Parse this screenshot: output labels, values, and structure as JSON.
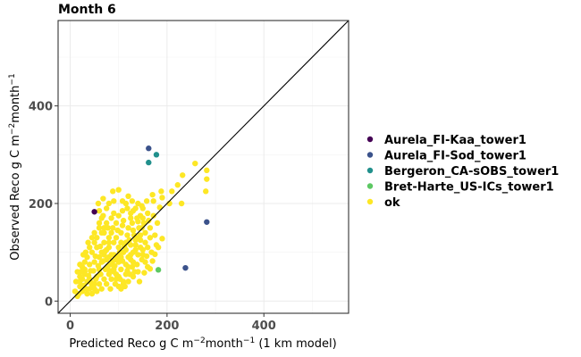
{
  "chart_data": {
    "type": "scatter",
    "title": "Month 6",
    "xlabel": {
      "pre": "Predicted Reco g C m",
      "sup1": "−2",
      "mid": "month",
      "sup2": "−1",
      "post": " (1 km model)"
    },
    "ylabel": {
      "pre": "Observed Reco g C m",
      "sup1": "−2",
      "mid": "month",
      "sup2": "−1",
      "post": ""
    },
    "xlim": [
      -25,
      575
    ],
    "ylim": [
      -25,
      575
    ],
    "x_ticks": [
      0,
      200,
      400
    ],
    "y_ticks": [
      0,
      200,
      400
    ],
    "grid": true,
    "identity_line": true,
    "legend_position": "right",
    "series": [
      {
        "name": "Aurela_FI-Kaa_tower1",
        "color": "#440154",
        "points": [
          [
            50,
            183
          ]
        ]
      },
      {
        "name": "Aurela_FI-Sod_tower1",
        "color": "#3B528B",
        "points": [
          [
            162,
            313
          ],
          [
            282,
            162
          ],
          [
            238,
            68
          ]
        ]
      },
      {
        "name": "Bergeron_CA-sOBS_tower1",
        "color": "#21908C",
        "points": [
          [
            162,
            284
          ],
          [
            178,
            300
          ]
        ]
      },
      {
        "name": "Bret-Harte_US-ICs_tower1",
        "color": "#5DC863",
        "points": [
          [
            182,
            64
          ]
        ]
      },
      {
        "name": "ok",
        "color": "#FDE725",
        "points": [
          [
            258,
            282
          ],
          [
            282,
            268
          ],
          [
            232,
            258
          ],
          [
            282,
            250
          ],
          [
            222,
            238
          ],
          [
            210,
            225
          ],
          [
            188,
            225
          ],
          [
            280,
            225
          ],
          [
            190,
            212
          ],
          [
            205,
            200
          ],
          [
            230,
            200
          ],
          [
            170,
            218
          ],
          [
            172,
            205
          ],
          [
            185,
            192
          ],
          [
            180,
            160
          ],
          [
            165,
            150
          ],
          [
            175,
            135
          ],
          [
            190,
            128
          ],
          [
            182,
            110
          ],
          [
            175,
            96
          ],
          [
            170,
            82
          ],
          [
            165,
            66
          ],
          [
            155,
            120
          ],
          [
            150,
            190
          ],
          [
            145,
            175
          ],
          [
            140,
            163
          ],
          [
            148,
            150
          ],
          [
            130,
            185
          ],
          [
            125,
            170
          ],
          [
            120,
            215
          ],
          [
            115,
            200
          ],
          [
            108,
            185
          ],
          [
            100,
            228
          ],
          [
            95,
            160
          ],
          [
            90,
            205
          ],
          [
            85,
            170
          ],
          [
            80,
            120
          ],
          [
            75,
            190
          ],
          [
            70,
            150
          ],
          [
            65,
            140
          ],
          [
            60,
            160
          ],
          [
            55,
            130
          ],
          [
            50,
            120
          ],
          [
            45,
            100
          ],
          [
            40,
            110
          ],
          [
            35,
            90
          ],
          [
            30,
            80
          ],
          [
            25,
            70
          ],
          [
            20,
            75
          ],
          [
            15,
            60
          ],
          [
            12,
            40
          ],
          [
            10,
            20
          ],
          [
            15,
            10
          ],
          [
            20,
            30
          ],
          [
            25,
            45
          ],
          [
            30,
            55
          ],
          [
            35,
            40
          ],
          [
            40,
            25
          ],
          [
            45,
            15
          ],
          [
            50,
            35
          ],
          [
            55,
            50
          ],
          [
            60,
            65
          ],
          [
            65,
            80
          ],
          [
            70,
            95
          ],
          [
            75,
            105
          ],
          [
            80,
            90
          ],
          [
            85,
            75
          ],
          [
            90,
            60
          ],
          [
            95,
            45
          ],
          [
            100,
            30
          ],
          [
            105,
            25
          ],
          [
            110,
            40
          ],
          [
            115,
            55
          ],
          [
            120,
            70
          ],
          [
            125,
            85
          ],
          [
            130,
            100
          ],
          [
            135,
            115
          ],
          [
            140,
            130
          ],
          [
            145,
            110
          ],
          [
            150,
            95
          ],
          [
            155,
            80
          ],
          [
            160,
            70
          ],
          [
            140,
            60
          ],
          [
            130,
            50
          ],
          [
            120,
            40
          ],
          [
            110,
            35
          ],
          [
            100,
            50
          ],
          [
            90,
            65
          ],
          [
            80,
            55
          ],
          [
            70,
            45
          ],
          [
            60,
            35
          ],
          [
            50,
            25
          ],
          [
            40,
            45
          ],
          [
            30,
            65
          ],
          [
            20,
            50
          ],
          [
            25,
            20
          ],
          [
            35,
            15
          ],
          [
            45,
            30
          ],
          [
            55,
            20
          ],
          [
            65,
            25
          ],
          [
            75,
            35
          ],
          [
            85,
            45
          ],
          [
            95,
            55
          ],
          [
            105,
            65
          ],
          [
            115,
            75
          ],
          [
            125,
            95
          ],
          [
            135,
            105
          ],
          [
            145,
            125
          ],
          [
            155,
            140
          ],
          [
            165,
            130
          ],
          [
            160,
            110
          ],
          [
            150,
            105
          ],
          [
            140,
            95
          ],
          [
            130,
            80
          ],
          [
            120,
            90
          ],
          [
            110,
            100
          ],
          [
            100,
            110
          ],
          [
            90,
            120
          ],
          [
            80,
            130
          ],
          [
            70,
            140
          ],
          [
            60,
            150
          ],
          [
            50,
            140
          ],
          [
            45,
            130
          ],
          [
            55,
            110
          ],
          [
            65,
            100
          ],
          [
            75,
            85
          ],
          [
            85,
            95
          ],
          [
            95,
            85
          ],
          [
            105,
            90
          ],
          [
            115,
            105
          ],
          [
            125,
            115
          ],
          [
            135,
            125
          ],
          [
            145,
            135
          ],
          [
            105,
            140
          ],
          [
            95,
            130
          ],
          [
            85,
            140
          ],
          [
            75,
            160
          ],
          [
            65,
            170
          ],
          [
            110,
            165
          ],
          [
            120,
            150
          ],
          [
            130,
            145
          ],
          [
            100,
            175
          ],
          [
            90,
            180
          ],
          [
            80,
            200
          ],
          [
            140,
            200
          ],
          [
            135,
            190
          ],
          [
            125,
            180
          ],
          [
            160,
            180
          ],
          [
            150,
            170
          ],
          [
            115,
            120
          ],
          [
            105,
            120
          ],
          [
            100,
            80
          ],
          [
            90,
            95
          ],
          [
            80,
            110
          ],
          [
            70,
            120
          ],
          [
            60,
            90
          ],
          [
            50,
            80
          ],
          [
            40,
            75
          ],
          [
            30,
            60
          ],
          [
            20,
            40
          ],
          [
            28,
            32
          ],
          [
            38,
            52
          ],
          [
            48,
            62
          ],
          [
            58,
            72
          ],
          [
            68,
            82
          ],
          [
            78,
            72
          ],
          [
            88,
            82
          ],
          [
            98,
            92
          ],
          [
            108,
            82
          ],
          [
            118,
            62
          ],
          [
            128,
            70
          ],
          [
            138,
            75
          ],
          [
            148,
            85
          ],
          [
            158,
            92
          ],
          [
            168,
            100
          ],
          [
            178,
            115
          ],
          [
            42,
            62
          ],
          [
            52,
            92
          ],
          [
            62,
            112
          ],
          [
            72,
            102
          ],
          [
            82,
            62
          ],
          [
            92,
            72
          ],
          [
            102,
            100
          ],
          [
            112,
            112
          ],
          [
            122,
            125
          ],
          [
            132,
            135
          ],
          [
            142,
            150
          ],
          [
            152,
            160
          ],
          [
            162,
            165
          ],
          [
            172,
            175
          ],
          [
            33,
            25
          ],
          [
            43,
            38
          ],
          [
            53,
            45
          ],
          [
            63,
            55
          ],
          [
            73,
            65
          ],
          [
            83,
            25
          ],
          [
            93,
            35
          ],
          [
            103,
            45
          ],
          [
            113,
            30
          ],
          [
            123,
            55
          ],
          [
            133,
            60
          ],
          [
            143,
            40
          ],
          [
            153,
            58
          ],
          [
            18,
            15
          ],
          [
            22,
            60
          ],
          [
            27,
            95
          ],
          [
            32,
            100
          ],
          [
            37,
            120
          ],
          [
            60,
            185
          ],
          [
            68,
            175
          ],
          [
            78,
            150
          ],
          [
            88,
            150
          ],
          [
            98,
            145
          ],
          [
            108,
            155
          ],
          [
            118,
            135
          ],
          [
            128,
            160
          ],
          [
            138,
            170
          ],
          [
            148,
            195
          ],
          [
            158,
            205
          ],
          [
            108,
            205
          ],
          [
            118,
            190
          ],
          [
            128,
            205
          ],
          [
            88,
            225
          ],
          [
            68,
            210
          ],
          [
            58,
            200
          ]
        ]
      }
    ]
  }
}
